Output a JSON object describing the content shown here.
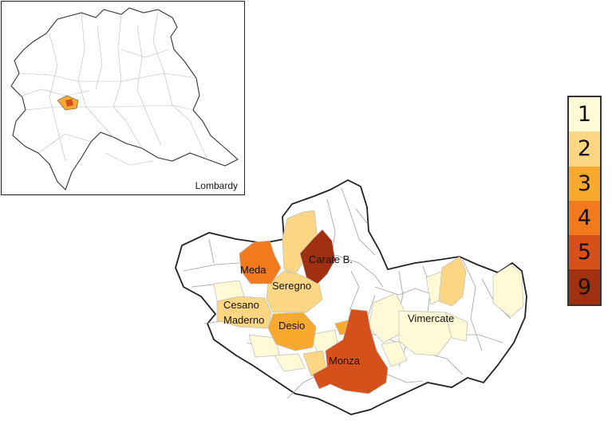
{
  "inset": {
    "label": "Lombardy"
  },
  "legend": [
    {
      "value": "1",
      "color": "#FFF9D6"
    },
    {
      "value": "2",
      "color": "#FCD683"
    },
    {
      "value": "3",
      "color": "#F9AA2E"
    },
    {
      "value": "4",
      "color": "#F37A1C"
    },
    {
      "value": "5",
      "color": "#D5501A"
    },
    {
      "value": "9",
      "color": "#A0300F"
    }
  ],
  "municipalities": [
    {
      "name": "Carate B.",
      "level": "9"
    },
    {
      "name": "Meda",
      "level": "4"
    },
    {
      "name": "Seregno",
      "level": "2"
    },
    {
      "name": "Cesano",
      "name_line2": "Maderno",
      "level": "2"
    },
    {
      "name": "Desio",
      "level": "3"
    },
    {
      "name": "Vimercate",
      "level": "1"
    },
    {
      "name": "Monza",
      "level": "5"
    }
  ],
  "colors": {
    "border": "#222222",
    "inner_border": "#9a9a9a",
    "highlight": "#F37A1C"
  }
}
